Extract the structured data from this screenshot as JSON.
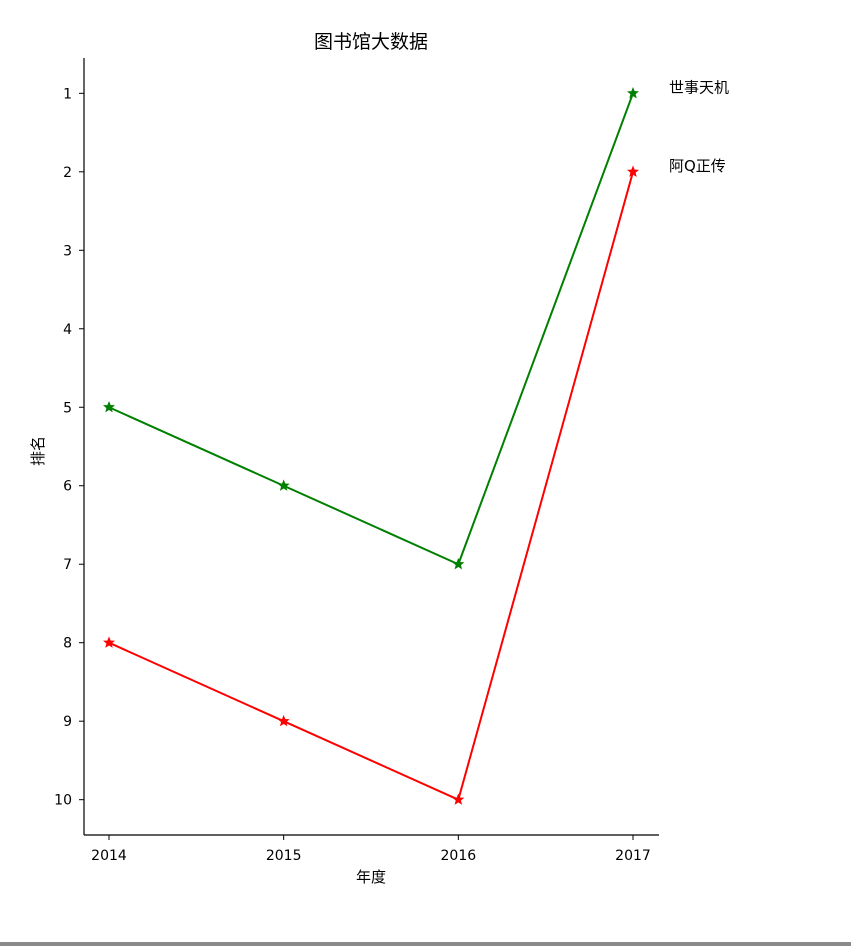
{
  "chart_data": {
    "type": "line",
    "title": "图书馆大数据",
    "xlabel": "年度",
    "ylabel": "排名",
    "x": [
      "2014",
      "2015",
      "2016",
      "2017"
    ],
    "y_ticks": [
      "1",
      "2",
      "3",
      "4",
      "5",
      "6",
      "7",
      "8",
      "9",
      "10"
    ],
    "y_inverted": true,
    "ylim": [
      0.55,
      10.45
    ],
    "grid": false,
    "marker": "star",
    "series": [
      {
        "name": "世事天机",
        "values": [
          5,
          6,
          7,
          1
        ],
        "color": "#008000"
      },
      {
        "name": "阿Q正传",
        "values": [
          8,
          9,
          10,
          2
        ],
        "color": "#ff0000"
      }
    ]
  }
}
